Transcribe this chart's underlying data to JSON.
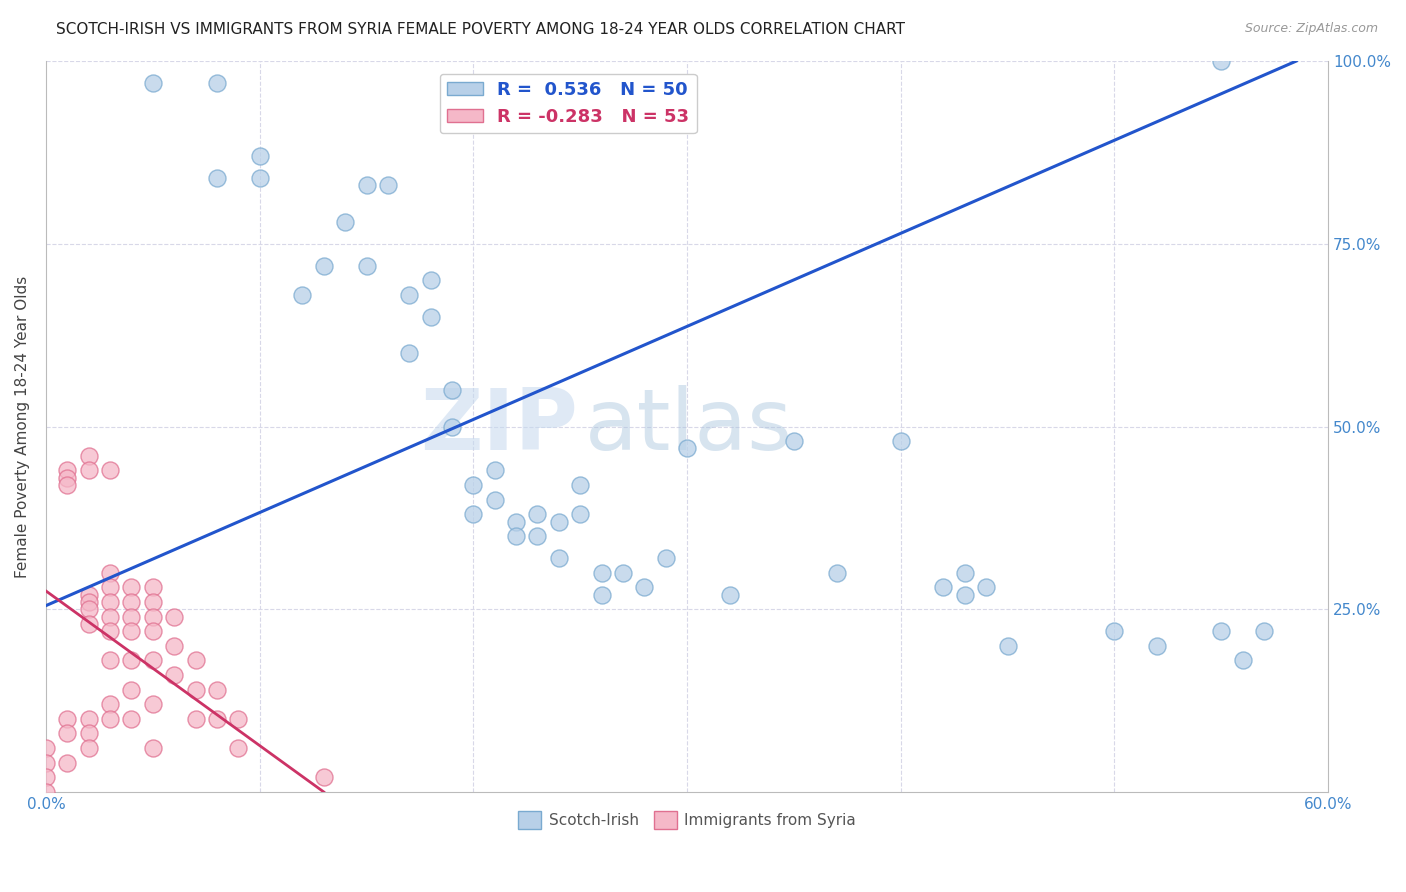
{
  "title": "SCOTCH-IRISH VS IMMIGRANTS FROM SYRIA FEMALE POVERTY AMONG 18-24 YEAR OLDS CORRELATION CHART",
  "source": "Source: ZipAtlas.com",
  "ylabel": "Female Poverty Among 18-24 Year Olds",
  "xlim": [
    0.0,
    0.6
  ],
  "ylim": [
    0.0,
    1.0
  ],
  "xticks": [
    0.0,
    0.1,
    0.2,
    0.3,
    0.4,
    0.5,
    0.6
  ],
  "xticklabels": [
    "0.0%",
    "",
    "",
    "",
    "",
    "",
    "60.0%"
  ],
  "yticks": [
    0.0,
    0.25,
    0.5,
    0.75,
    1.0
  ],
  "yticklabels": [
    "",
    "25.0%",
    "50.0%",
    "75.0%",
    "100.0%"
  ],
  "watermark_zip": "ZIP",
  "watermark_atlas": "atlas",
  "blue_R": 0.536,
  "blue_N": 50,
  "pink_R": -0.283,
  "pink_N": 53,
  "blue_color": "#b8d0e8",
  "blue_edge": "#7aaad0",
  "pink_color": "#f5b8c8",
  "pink_edge": "#e07090",
  "blue_line_color": "#2255cc",
  "pink_line_color": "#cc3366",
  "background_color": "#ffffff",
  "grid_color": "#d8d8e8",
  "axis_color": "#bbbbbb",
  "title_color": "#222222",
  "right_axis_color": "#4488cc",
  "blue_scatter_x": [
    0.05,
    0.08,
    0.08,
    0.1,
    0.1,
    0.12,
    0.13,
    0.14,
    0.15,
    0.15,
    0.16,
    0.17,
    0.17,
    0.18,
    0.18,
    0.19,
    0.19,
    0.2,
    0.2,
    0.21,
    0.21,
    0.22,
    0.22,
    0.23,
    0.23,
    0.24,
    0.24,
    0.25,
    0.25,
    0.26,
    0.26,
    0.27,
    0.28,
    0.29,
    0.3,
    0.32,
    0.35,
    0.37,
    0.4,
    0.42,
    0.43,
    0.43,
    0.44,
    0.45,
    0.5,
    0.52,
    0.55,
    0.56,
    0.57,
    0.55
  ],
  "blue_scatter_y": [
    0.97,
    0.97,
    0.84,
    0.87,
    0.84,
    0.68,
    0.72,
    0.78,
    0.83,
    0.72,
    0.83,
    0.68,
    0.6,
    0.7,
    0.65,
    0.5,
    0.55,
    0.42,
    0.38,
    0.44,
    0.4,
    0.37,
    0.35,
    0.38,
    0.35,
    0.37,
    0.32,
    0.42,
    0.38,
    0.3,
    0.27,
    0.3,
    0.28,
    0.32,
    0.47,
    0.27,
    0.48,
    0.3,
    0.48,
    0.28,
    0.27,
    0.3,
    0.28,
    0.2,
    0.22,
    0.2,
    0.22,
    0.18,
    0.22,
    1.0
  ],
  "pink_scatter_x": [
    0.0,
    0.0,
    0.0,
    0.0,
    0.01,
    0.01,
    0.01,
    0.01,
    0.01,
    0.01,
    0.02,
    0.02,
    0.02,
    0.02,
    0.02,
    0.02,
    0.02,
    0.02,
    0.02,
    0.03,
    0.03,
    0.03,
    0.03,
    0.03,
    0.03,
    0.03,
    0.03,
    0.03,
    0.04,
    0.04,
    0.04,
    0.04,
    0.04,
    0.04,
    0.04,
    0.05,
    0.05,
    0.05,
    0.05,
    0.05,
    0.05,
    0.05,
    0.06,
    0.06,
    0.06,
    0.07,
    0.07,
    0.07,
    0.08,
    0.08,
    0.09,
    0.09,
    0.13
  ],
  "pink_scatter_y": [
    0.06,
    0.04,
    0.02,
    0.0,
    0.44,
    0.43,
    0.42,
    0.1,
    0.08,
    0.04,
    0.46,
    0.44,
    0.27,
    0.26,
    0.25,
    0.23,
    0.1,
    0.08,
    0.06,
    0.44,
    0.3,
    0.28,
    0.26,
    0.24,
    0.22,
    0.18,
    0.12,
    0.1,
    0.28,
    0.26,
    0.24,
    0.22,
    0.18,
    0.14,
    0.1,
    0.28,
    0.26,
    0.24,
    0.22,
    0.18,
    0.12,
    0.06,
    0.24,
    0.2,
    0.16,
    0.18,
    0.14,
    0.1,
    0.14,
    0.1,
    0.1,
    0.06,
    0.02
  ],
  "blue_line_x0": 0.0,
  "blue_line_y0": 0.255,
  "blue_line_x1": 0.585,
  "blue_line_y1": 1.0,
  "pink_line_x0": 0.0,
  "pink_line_y0": 0.275,
  "pink_line_x1": 0.13,
  "pink_line_y1": 0.0
}
